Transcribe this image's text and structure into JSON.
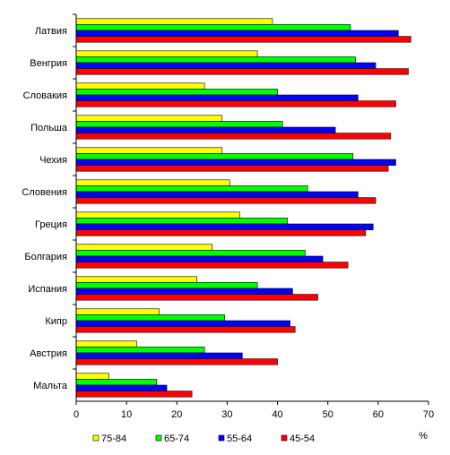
{
  "chart_data": {
    "type": "bar",
    "orientation": "horizontal",
    "categories": [
      "Латвия",
      "Венгрия",
      "Словакия",
      "Польша",
      "Чехия",
      "Словения",
      "Греция",
      "Болгария",
      "Испания",
      "Кипр",
      "Австрия",
      "Мальта"
    ],
    "series": [
      {
        "name": "75-84",
        "color": "#ffff00",
        "values": [
          39.0,
          36.0,
          25.5,
          29.0,
          29.0,
          30.5,
          32.5,
          27.0,
          24.0,
          16.5,
          12.0,
          6.5
        ]
      },
      {
        "name": "65-74",
        "color": "#00ff00",
        "values": [
          54.5,
          55.5,
          40.0,
          41.0,
          55.0,
          46.0,
          42.0,
          45.5,
          36.0,
          29.5,
          25.5,
          16.0
        ]
      },
      {
        "name": "55-64",
        "color": "#0000ff",
        "values": [
          64.0,
          59.5,
          56.0,
          51.5,
          63.5,
          56.0,
          59.0,
          49.0,
          43.0,
          42.5,
          33.0,
          18.0
        ]
      },
      {
        "name": "45-54",
        "color": "#ff0000",
        "values": [
          66.5,
          66.0,
          63.5,
          62.5,
          62.0,
          59.5,
          57.5,
          54.0,
          48.0,
          43.5,
          40.0,
          23.0
        ]
      }
    ],
    "xlim": [
      0,
      70
    ],
    "xticks": [
      "0",
      "10",
      "20",
      "30",
      "40",
      "50",
      "60",
      "70"
    ],
    "xlabel": "%",
    "grid": false,
    "legend_position": "bottom"
  }
}
